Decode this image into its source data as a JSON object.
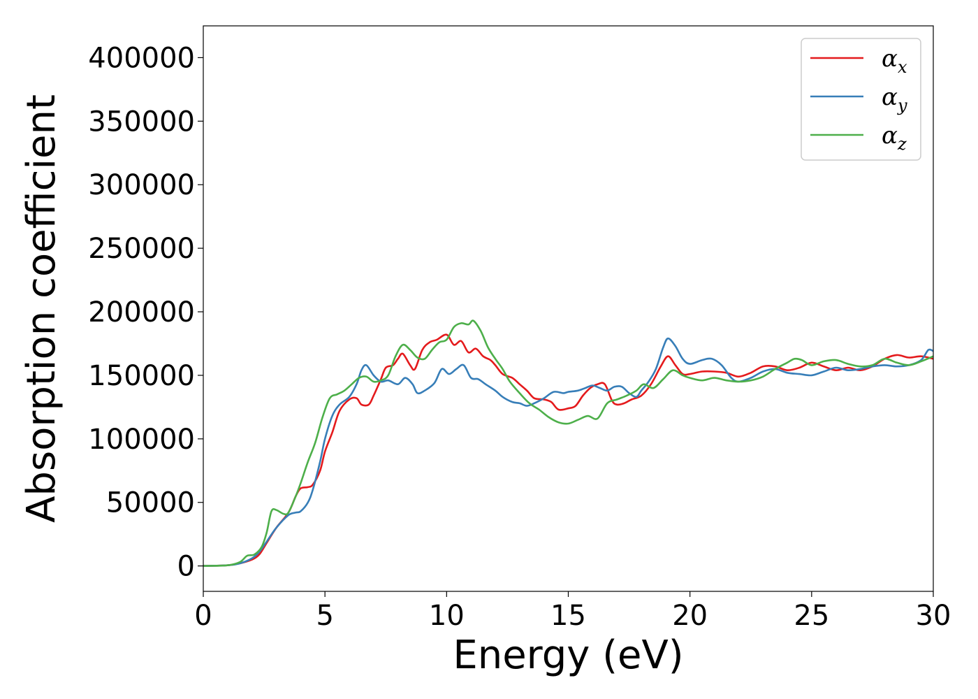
{
  "chart_data": {
    "type": "line",
    "title": "",
    "xlabel": "Energy (eV)",
    "ylabel": "Absorption coefficient",
    "xlim": [
      0,
      30
    ],
    "ylim": [
      -20000,
      425000
    ],
    "xticks": [
      0,
      5,
      10,
      15,
      20,
      25,
      30
    ],
    "yticks": [
      0,
      50000,
      100000,
      150000,
      200000,
      250000,
      300000,
      350000,
      400000
    ],
    "grid": false,
    "legend_position": "top-right",
    "series": [
      {
        "name": "α_x",
        "name_base": "α",
        "name_sub": "x",
        "color": "#e41a1c",
        "points": [
          [
            0,
            0
          ],
          [
            1,
            500
          ],
          [
            1.5,
            2000
          ],
          [
            2,
            5000
          ],
          [
            2.3,
            9000
          ],
          [
            2.6,
            18000
          ],
          [
            3,
            30000
          ],
          [
            3.5,
            42000
          ],
          [
            3.8,
            55000
          ],
          [
            4,
            61000
          ],
          [
            4.3,
            62000
          ],
          [
            4.5,
            64000
          ],
          [
            4.8,
            75000
          ],
          [
            5,
            90000
          ],
          [
            5.3,
            105000
          ],
          [
            5.6,
            122000
          ],
          [
            6,
            131000
          ],
          [
            6.3,
            132000
          ],
          [
            6.5,
            127000
          ],
          [
            6.8,
            127000
          ],
          [
            7,
            134000
          ],
          [
            7.3,
            147000
          ],
          [
            7.5,
            156000
          ],
          [
            7.8,
            158000
          ],
          [
            8,
            163000
          ],
          [
            8.2,
            167000
          ],
          [
            8.5,
            158000
          ],
          [
            8.7,
            155000
          ],
          [
            9,
            170000
          ],
          [
            9.3,
            176000
          ],
          [
            9.6,
            178000
          ],
          [
            10,
            182000
          ],
          [
            10.3,
            174000
          ],
          [
            10.6,
            177000
          ],
          [
            10.9,
            168000
          ],
          [
            11.2,
            171000
          ],
          [
            11.5,
            165000
          ],
          [
            11.8,
            162000
          ],
          [
            12,
            158000
          ],
          [
            12.3,
            151000
          ],
          [
            12.7,
            148000
          ],
          [
            13,
            143000
          ],
          [
            13.3,
            138000
          ],
          [
            13.6,
            132000
          ],
          [
            14,
            131000
          ],
          [
            14.3,
            129000
          ],
          [
            14.6,
            123000
          ],
          [
            15,
            124000
          ],
          [
            15.3,
            126000
          ],
          [
            15.6,
            134000
          ],
          [
            15.9,
            140000
          ],
          [
            16.2,
            143000
          ],
          [
            16.5,
            143000
          ],
          [
            16.8,
            130000
          ],
          [
            17,
            127000
          ],
          [
            17.3,
            128000
          ],
          [
            17.6,
            131000
          ],
          [
            18,
            134000
          ],
          [
            18.4,
            143000
          ],
          [
            18.8,
            157000
          ],
          [
            19.1,
            165000
          ],
          [
            19.4,
            158000
          ],
          [
            19.7,
            151000
          ],
          [
            20,
            151000
          ],
          [
            20.5,
            153000
          ],
          [
            21,
            153000
          ],
          [
            21.5,
            152000
          ],
          [
            22,
            149000
          ],
          [
            22.5,
            152000
          ],
          [
            23,
            157000
          ],
          [
            23.5,
            157000
          ],
          [
            24,
            154000
          ],
          [
            24.5,
            156000
          ],
          [
            25,
            160000
          ],
          [
            25.5,
            157000
          ],
          [
            26,
            154000
          ],
          [
            26.5,
            156000
          ],
          [
            27,
            154000
          ],
          [
            27.5,
            157000
          ],
          [
            28,
            163000
          ],
          [
            28.5,
            166000
          ],
          [
            29,
            164000
          ],
          [
            29.5,
            165000
          ],
          [
            30,
            163000
          ]
        ]
      },
      {
        "name": "α_y",
        "name_base": "α",
        "name_sub": "y",
        "color": "#377eb8",
        "points": [
          [
            0,
            0
          ],
          [
            1,
            500
          ],
          [
            1.5,
            2000
          ],
          [
            2,
            6000
          ],
          [
            2.3,
            11000
          ],
          [
            2.6,
            19000
          ],
          [
            3,
            30000
          ],
          [
            3.5,
            40000
          ],
          [
            3.8,
            42000
          ],
          [
            4,
            43000
          ],
          [
            4.3,
            50000
          ],
          [
            4.5,
            60000
          ],
          [
            4.8,
            82000
          ],
          [
            5,
            100000
          ],
          [
            5.3,
            118000
          ],
          [
            5.6,
            127000
          ],
          [
            6,
            133000
          ],
          [
            6.3,
            143000
          ],
          [
            6.5,
            154000
          ],
          [
            6.7,
            158000
          ],
          [
            7,
            150000
          ],
          [
            7.3,
            145000
          ],
          [
            7.6,
            146000
          ],
          [
            8,
            143000
          ],
          [
            8.3,
            148000
          ],
          [
            8.6,
            143000
          ],
          [
            8.8,
            136000
          ],
          [
            9.1,
            138000
          ],
          [
            9.5,
            144000
          ],
          [
            9.8,
            155000
          ],
          [
            10.1,
            151000
          ],
          [
            10.4,
            155000
          ],
          [
            10.7,
            158000
          ],
          [
            11,
            148000
          ],
          [
            11.3,
            147000
          ],
          [
            11.6,
            143000
          ],
          [
            12,
            138000
          ],
          [
            12.3,
            133000
          ],
          [
            12.7,
            129000
          ],
          [
            13,
            128000
          ],
          [
            13.3,
            126000
          ],
          [
            13.6,
            128000
          ],
          [
            14,
            132000
          ],
          [
            14.4,
            137000
          ],
          [
            14.8,
            136000
          ],
          [
            15,
            137000
          ],
          [
            15.4,
            138000
          ],
          [
            15.7,
            140000
          ],
          [
            16,
            142000
          ],
          [
            16.3,
            140000
          ],
          [
            16.6,
            138000
          ],
          [
            16.9,
            141000
          ],
          [
            17.2,
            141000
          ],
          [
            17.5,
            136000
          ],
          [
            17.8,
            133000
          ],
          [
            18,
            138000
          ],
          [
            18.3,
            145000
          ],
          [
            18.6,
            155000
          ],
          [
            18.9,
            172000
          ],
          [
            19.1,
            179000
          ],
          [
            19.4,
            173000
          ],
          [
            19.7,
            163000
          ],
          [
            20,
            159000
          ],
          [
            20.5,
            162000
          ],
          [
            20.9,
            163000
          ],
          [
            21.3,
            158000
          ],
          [
            21.7,
            148000
          ],
          [
            22,
            145000
          ],
          [
            22.5,
            148000
          ],
          [
            23,
            153000
          ],
          [
            23.5,
            155000
          ],
          [
            24,
            152000
          ],
          [
            24.5,
            151000
          ],
          [
            25,
            150000
          ],
          [
            25.5,
            153000
          ],
          [
            26,
            156000
          ],
          [
            26.5,
            154000
          ],
          [
            27,
            155000
          ],
          [
            27.5,
            157000
          ],
          [
            28,
            158000
          ],
          [
            28.5,
            157000
          ],
          [
            29,
            158000
          ],
          [
            29.5,
            162000
          ],
          [
            29.8,
            170000
          ],
          [
            30,
            169000
          ]
        ]
      },
      {
        "name": "α_z",
        "name_base": "α",
        "name_sub": "z",
        "color": "#4daf4a",
        "points": [
          [
            0,
            0
          ],
          [
            1,
            500
          ],
          [
            1.5,
            3000
          ],
          [
            1.8,
            8000
          ],
          [
            2.1,
            9000
          ],
          [
            2.4,
            15000
          ],
          [
            2.6,
            26000
          ],
          [
            2.8,
            43000
          ],
          [
            3,
            44000
          ],
          [
            3.3,
            41000
          ],
          [
            3.5,
            42000
          ],
          [
            3.8,
            55000
          ],
          [
            4,
            65000
          ],
          [
            4.3,
            82000
          ],
          [
            4.6,
            97000
          ],
          [
            4.9,
            117000
          ],
          [
            5.2,
            132000
          ],
          [
            5.5,
            135000
          ],
          [
            5.8,
            138000
          ],
          [
            6.1,
            143000
          ],
          [
            6.4,
            148000
          ],
          [
            6.7,
            149000
          ],
          [
            7,
            145000
          ],
          [
            7.3,
            146000
          ],
          [
            7.6,
            150000
          ],
          [
            7.9,
            165000
          ],
          [
            8.2,
            174000
          ],
          [
            8.5,
            170000
          ],
          [
            8.8,
            164000
          ],
          [
            9.1,
            163000
          ],
          [
            9.4,
            170000
          ],
          [
            9.7,
            176000
          ],
          [
            10,
            178000
          ],
          [
            10.3,
            188000
          ],
          [
            10.6,
            191000
          ],
          [
            10.9,
            190000
          ],
          [
            11.1,
            193000
          ],
          [
            11.4,
            185000
          ],
          [
            11.7,
            172000
          ],
          [
            12,
            163000
          ],
          [
            12.3,
            155000
          ],
          [
            12.6,
            145000
          ],
          [
            13,
            136000
          ],
          [
            13.4,
            128000
          ],
          [
            13.8,
            123000
          ],
          [
            14.2,
            117000
          ],
          [
            14.6,
            113000
          ],
          [
            15,
            112000
          ],
          [
            15.4,
            115000
          ],
          [
            15.8,
            118000
          ],
          [
            16.2,
            116000
          ],
          [
            16.6,
            128000
          ],
          [
            17,
            131000
          ],
          [
            17.4,
            134000
          ],
          [
            17.8,
            138000
          ],
          [
            18.1,
            143000
          ],
          [
            18.5,
            140000
          ],
          [
            18.9,
            147000
          ],
          [
            19.3,
            154000
          ],
          [
            19.7,
            150000
          ],
          [
            20,
            148000
          ],
          [
            20.5,
            146000
          ],
          [
            21,
            148000
          ],
          [
            21.5,
            146000
          ],
          [
            22,
            145000
          ],
          [
            22.5,
            146000
          ],
          [
            23,
            149000
          ],
          [
            23.5,
            155000
          ],
          [
            24,
            160000
          ],
          [
            24.3,
            163000
          ],
          [
            24.6,
            162000
          ],
          [
            25,
            158000
          ],
          [
            25.5,
            161000
          ],
          [
            26,
            162000
          ],
          [
            26.5,
            159000
          ],
          [
            27,
            157000
          ],
          [
            27.5,
            158000
          ],
          [
            28,
            163000
          ],
          [
            28.5,
            160000
          ],
          [
            29,
            158000
          ],
          [
            29.5,
            161000
          ],
          [
            30,
            165000
          ]
        ]
      }
    ]
  }
}
